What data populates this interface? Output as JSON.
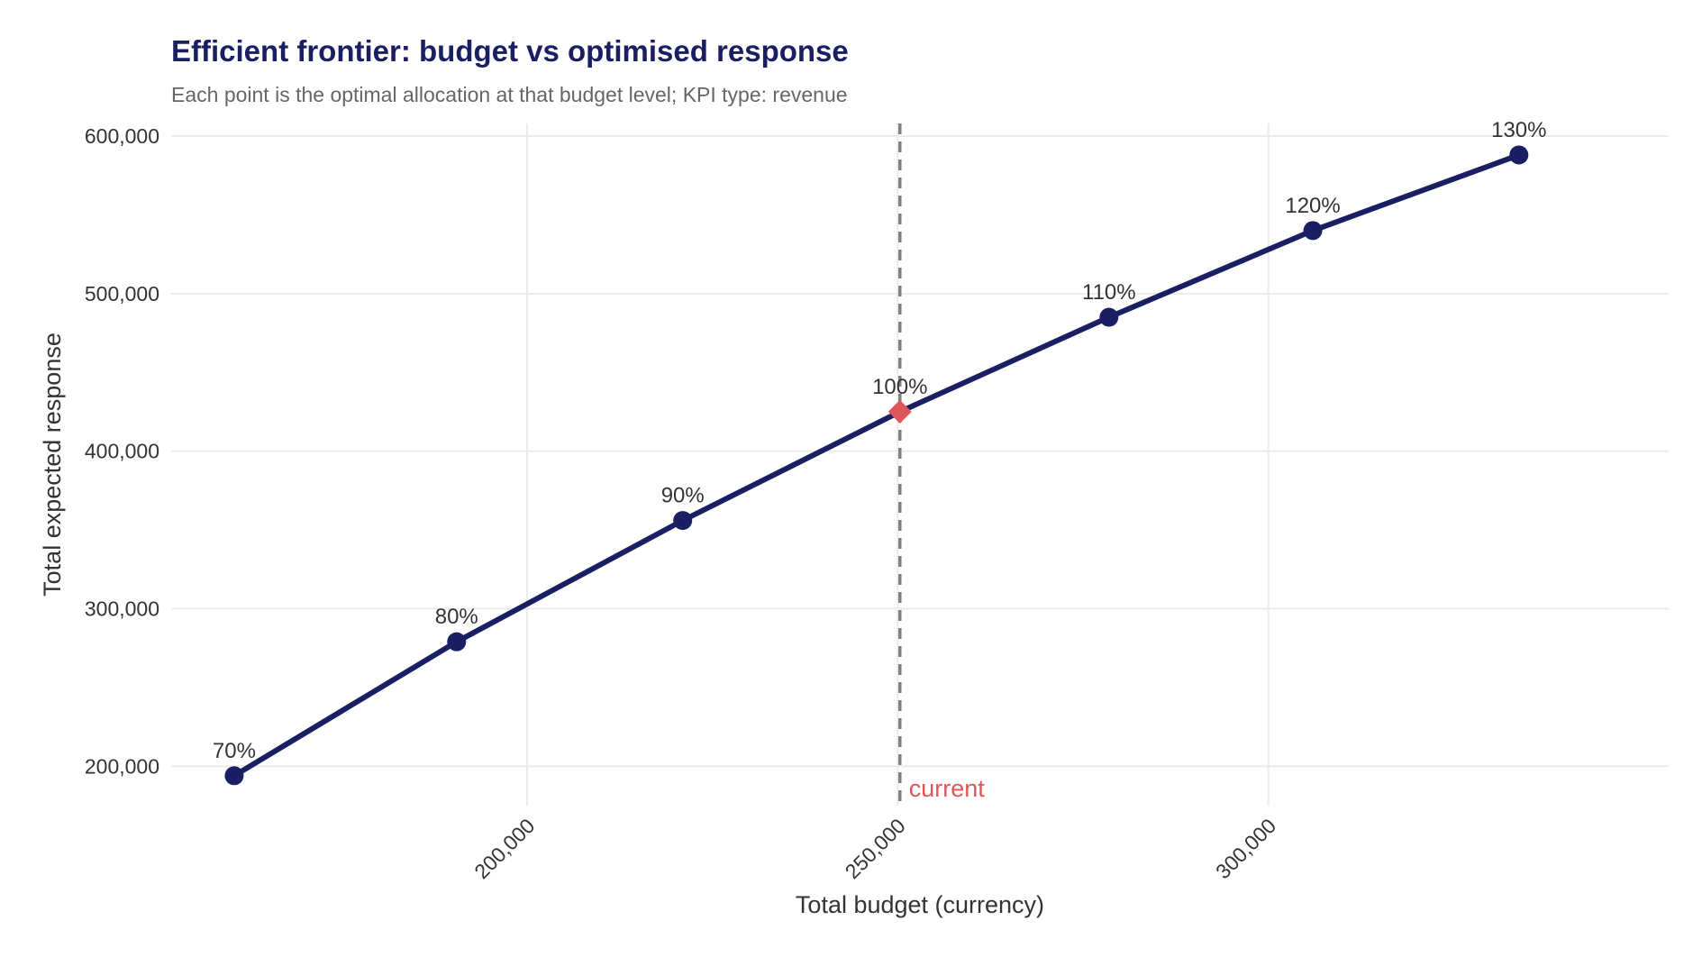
{
  "chart_data": {
    "type": "line",
    "title": "Efficient frontier: budget vs optimised response",
    "subtitle": "Each point is the optimal allocation at that budget level; KPI type: revenue",
    "xlabel": "Total budget (currency)",
    "ylabel": "Total expected response",
    "xlim": [
      152000,
      354000
    ],
    "ylim": [
      175000,
      608000
    ],
    "x_ticks": [
      200000,
      250000,
      300000
    ],
    "x_tick_labels": [
      "200,000",
      "250,000",
      "300,000"
    ],
    "y_ticks": [
      200000,
      300000,
      400000,
      500000,
      600000
    ],
    "y_tick_labels": [
      "200,000",
      "300,000",
      "400,000",
      "500,000",
      "600,000"
    ],
    "grid": true,
    "series": [
      {
        "x": [
          160500,
          190500,
          221000,
          250300,
          278500,
          306000,
          333800
        ],
        "y": [
          194000,
          279000,
          356000,
          425000,
          485000,
          540000,
          588000
        ],
        "point_labels": [
          "70%",
          "80%",
          "90%",
          "100%",
          "110%",
          "120%",
          "130%"
        ],
        "color": "#1a1f63"
      }
    ],
    "reference_line": {
      "x": 250300,
      "label": "current",
      "line_color": "#808080",
      "label_color": "#e0555a"
    },
    "highlight_point_index": 3,
    "highlight_color": "#e0555a",
    "colors": {
      "grid": "#ebebeb",
      "text": "#333333"
    }
  }
}
